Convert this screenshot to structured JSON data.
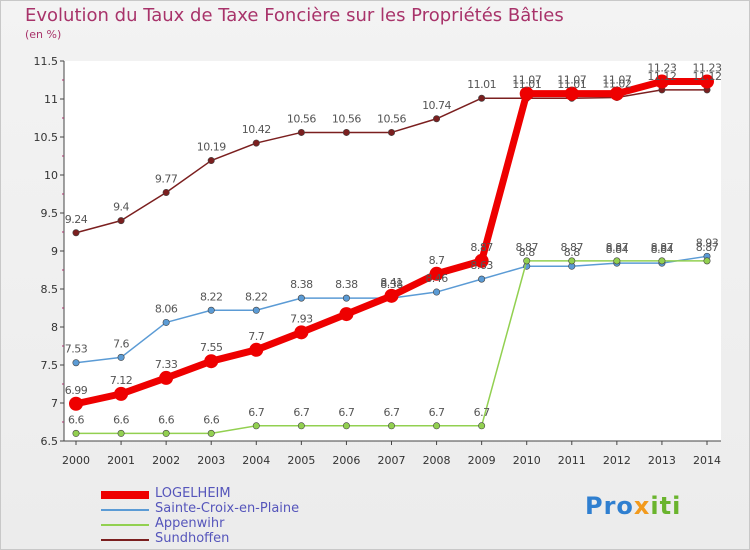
{
  "header": {
    "title": "Evolution du Taux de Taxe Foncière sur les Propriétés Bâties",
    "unit": "(en %)"
  },
  "logo": {
    "part1": "Pro",
    "part2": "x",
    "part3": "iti"
  },
  "chart_data": {
    "type": "line",
    "title": "Evolution du Taux de Taxe Foncière sur les Propriétés Bâties",
    "ylabel": "(en %)",
    "xlabel": "",
    "ylim": [
      6.5,
      11.5
    ],
    "yticks": [
      "6.5",
      "7",
      "7.5",
      "8",
      "8.5",
      "9",
      "9.5",
      "10",
      "10.5",
      "11",
      "11.5"
    ],
    "categories": [
      "2000",
      "2001",
      "2002",
      "2003",
      "2004",
      "2005",
      "2006",
      "2007",
      "2008",
      "2009",
      "2010",
      "2011",
      "2012",
      "2013",
      "2014"
    ],
    "grid": false,
    "legend_position": "bottom-left",
    "series": [
      {
        "name": "LOGELHEIM",
        "color": "#ee0000",
        "values": [
          6.99,
          7.12,
          7.33,
          7.55,
          7.7,
          7.93,
          8.17,
          8.41,
          8.7,
          8.87,
          11.07,
          11.07,
          11.07,
          11.23,
          11.23
        ],
        "labels": [
          "6.99",
          "7.12",
          "7.33",
          "7.55",
          "7.7",
          "7.93",
          "",
          "8.41",
          "8.7",
          "8.87",
          "11.07",
          "11.07",
          "11.07",
          "11.23",
          "11.23"
        ]
      },
      {
        "name": "Sainte-Croix-en-Plaine",
        "color": "#5b9bd5",
        "values": [
          7.53,
          7.6,
          8.06,
          8.22,
          8.22,
          8.38,
          8.38,
          8.38,
          8.46,
          8.63,
          8.8,
          8.8,
          8.84,
          8.84,
          8.93
        ],
        "labels": [
          "7.53",
          "7.6",
          "8.06",
          "8.22",
          "8.22",
          "8.38",
          "8.38",
          "8.38",
          "8.46",
          "8.63",
          "8.8",
          "8.8",
          "8.84",
          "8.84",
          "8.93"
        ]
      },
      {
        "name": "Appenwihr",
        "color": "#92d050",
        "values": [
          6.6,
          6.6,
          6.6,
          6.6,
          6.7,
          6.7,
          6.7,
          6.7,
          6.7,
          6.7,
          8.87,
          8.87,
          8.87,
          8.87,
          8.87
        ],
        "labels": [
          "6.6",
          "6.6",
          "6.6",
          "6.6",
          "6.7",
          "6.7",
          "6.7",
          "6.7",
          "6.7",
          "6.7",
          "8.87",
          "8.87",
          "8.87",
          "8.87",
          "8.87"
        ]
      },
      {
        "name": "Sundhoffen",
        "color": "#7b1f1f",
        "values": [
          9.24,
          9.4,
          9.77,
          10.19,
          10.42,
          10.56,
          10.56,
          10.56,
          10.74,
          11.01,
          11.01,
          11.01,
          11.02,
          11.12,
          11.12
        ],
        "labels": [
          "9.24",
          "9.4",
          "9.77",
          "10.19",
          "10.42",
          "10.56",
          "10.56",
          "10.56",
          "10.74",
          "11.01",
          "11.01",
          "11.01",
          "11.02",
          "11.12",
          "11.12"
        ]
      }
    ]
  }
}
